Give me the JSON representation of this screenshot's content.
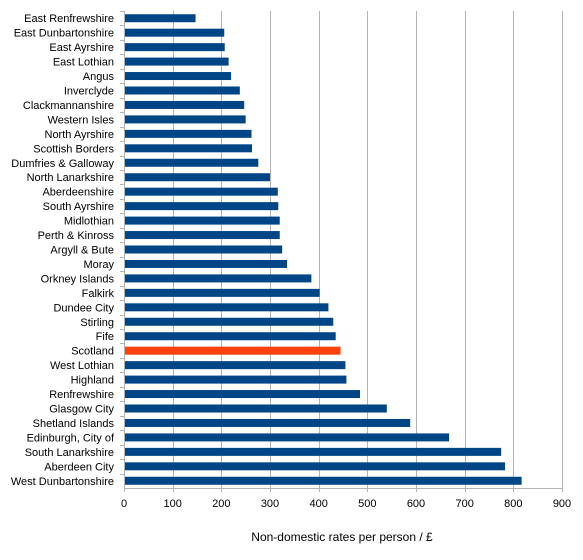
{
  "chart_data": {
    "type": "bar",
    "orientation": "horizontal",
    "categories": [
      "East Renfrewshire",
      "East Dunbartonshire",
      "East Ayrshire",
      "East Lothian",
      "Angus",
      "Inverclyde",
      "Clackmannanshire",
      "Western Isles",
      "North Ayrshire",
      "Scottish Borders",
      "Dumfries & Galloway",
      "North Lanarkshire",
      "Aberdeenshire",
      "South Ayrshire",
      "Midlothian",
      "Perth & Kinross",
      "Argyll & Bute",
      "Moray",
      "Orkney Islands",
      "Falkirk",
      "Dundee City",
      "Stirling",
      "Fife",
      "Scotland",
      "West Lothian",
      "Highland",
      "Renfrewshire",
      "Glasgow City",
      "Shetland Islands",
      "Edinburgh, City of",
      "South Lanarkshire",
      "Aberdeen City",
      "West Dunbartonshire"
    ],
    "values": [
      147,
      206,
      207,
      215,
      220,
      238,
      247,
      250,
      262,
      263,
      276,
      300,
      316,
      317,
      320,
      320,
      325,
      335,
      385,
      402,
      420,
      430,
      435,
      445,
      455,
      457,
      485,
      540,
      588,
      668,
      775,
      783,
      817
    ],
    "highlight": "Scotland",
    "colors": {
      "bar": "#004586",
      "highlight": "#ff420e",
      "grid": "#b3b3b3",
      "axis": "#000000"
    },
    "xlabel": "Non-domestic rates per person / £",
    "xlim": [
      0,
      900
    ],
    "xticks": [
      0,
      100,
      200,
      300,
      400,
      500,
      600,
      700,
      800,
      900
    ],
    "grid": "vertical"
  }
}
